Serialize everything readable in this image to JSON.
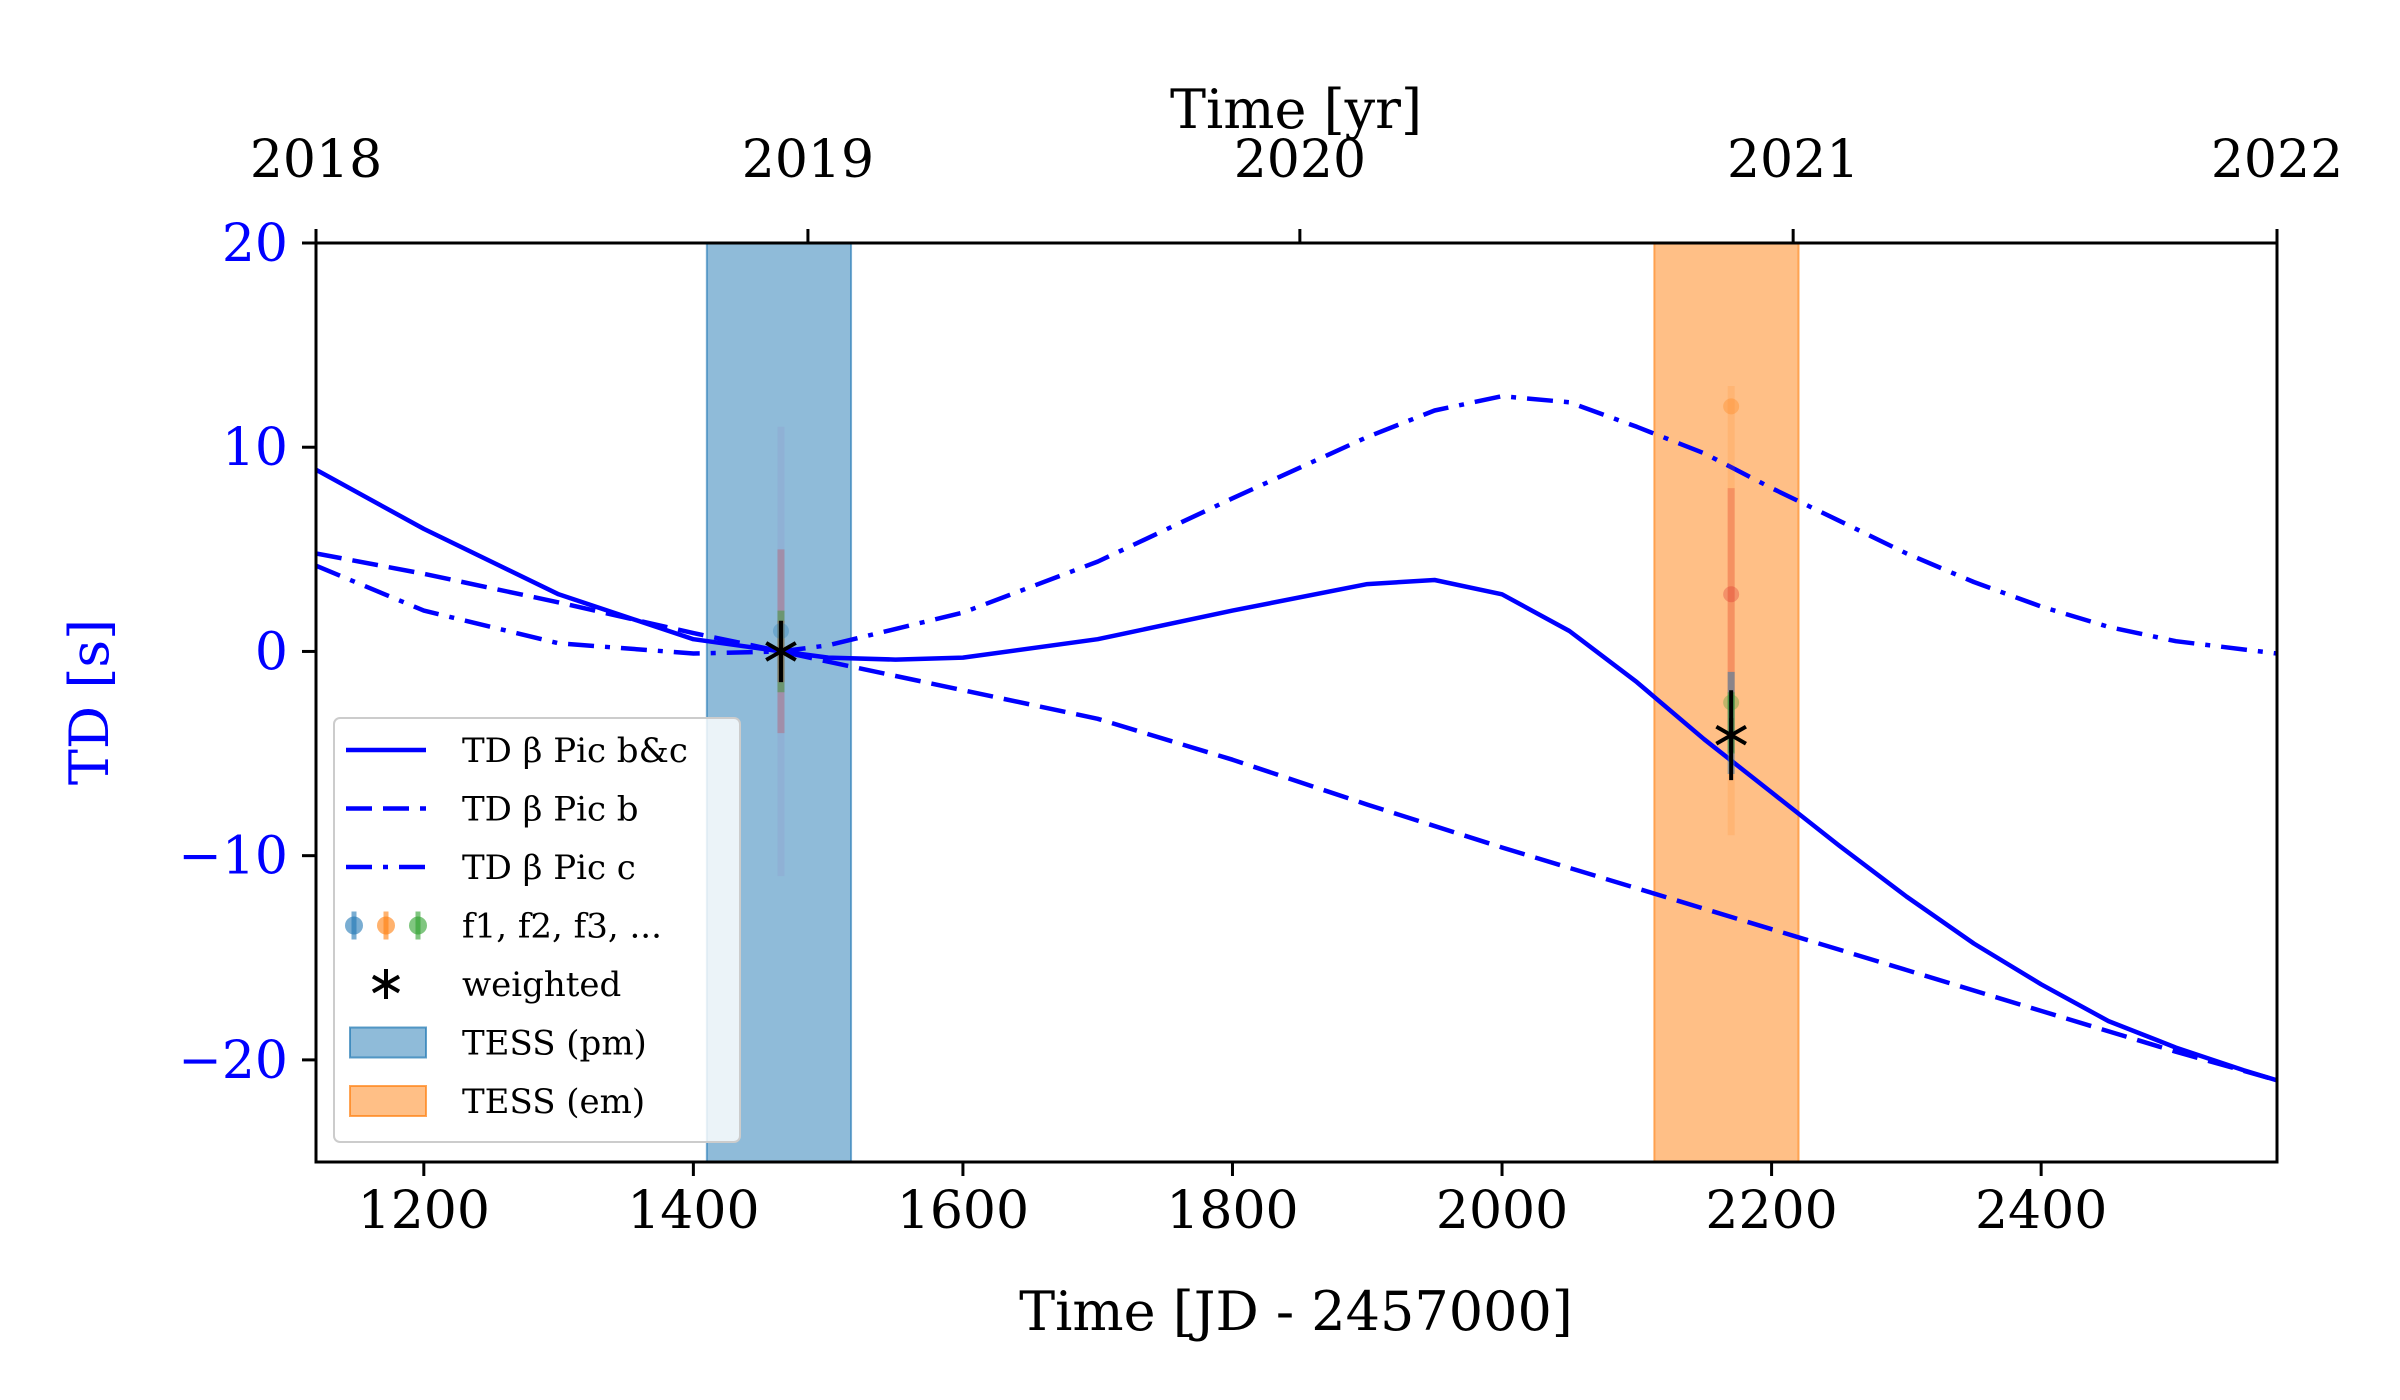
{
  "chart_data": {
    "type": "line",
    "xlabel": "Time [JD - 2457000]",
    "ylabel": "TD [s]",
    "top_xlabel": "Time [yr]",
    "xlim": [
      1120,
      2575
    ],
    "ylim": [
      -25,
      20
    ],
    "xticks": [
      1200,
      1400,
      1600,
      1800,
      2000,
      2200,
      2400
    ],
    "yticks": [
      20,
      10,
      0,
      -10,
      -20
    ],
    "top_axis": {
      "ticks": [
        {
          "label": "2018",
          "x": 1120
        },
        {
          "label": "2019",
          "x": 1485
        },
        {
          "label": "2020",
          "x": 1850
        },
        {
          "label": "2021",
          "x": 2216
        },
        {
          "label": "2022",
          "x": 2575
        }
      ]
    },
    "grid": false,
    "legend_position": "lower-left",
    "colors": {
      "line": "#0000ff",
      "tess_pm": "#1f77b4",
      "tess_em": "#ff7f0e",
      "weighted": "#000000"
    },
    "spans": [
      {
        "name": "TESS (pm)",
        "x0": 1410,
        "x1": 1517,
        "color": "#1f77b4"
      },
      {
        "name": "TESS (em)",
        "x0": 2113,
        "x1": 2220,
        "color": "#ff7f0e"
      }
    ],
    "series": [
      {
        "name": "TD β Pic b&c",
        "style": "solid",
        "x": [
          1120,
          1200,
          1300,
          1400,
          1465,
          1500,
          1550,
          1600,
          1700,
          1800,
          1900,
          1950,
          2000,
          2050,
          2100,
          2150,
          2200,
          2250,
          2300,
          2350,
          2400,
          2450,
          2500,
          2550,
          2575
        ],
        "y": [
          8.9,
          6.0,
          2.8,
          0.6,
          0.0,
          -0.3,
          -0.4,
          -0.3,
          0.6,
          2.0,
          3.3,
          3.5,
          2.8,
          1.0,
          -1.5,
          -4.3,
          -6.9,
          -9.5,
          -12.0,
          -14.3,
          -16.3,
          -18.1,
          -19.4,
          -20.5,
          -21.0
        ]
      },
      {
        "name": "TD β Pic b",
        "style": "dashed",
        "x": [
          1120,
          1200,
          1300,
          1400,
          1465,
          1500,
          1600,
          1700,
          1800,
          1900,
          2000,
          2100,
          2200,
          2300,
          2400,
          2500,
          2575
        ],
        "y": [
          4.8,
          3.8,
          2.4,
          0.9,
          0.0,
          -0.5,
          -1.9,
          -3.3,
          -5.3,
          -7.5,
          -9.6,
          -11.6,
          -13.6,
          -15.6,
          -17.6,
          -19.6,
          -21.0
        ]
      },
      {
        "name": "TD β Pic c",
        "style": "dashdot",
        "x": [
          1120,
          1200,
          1300,
          1400,
          1465,
          1500,
          1600,
          1700,
          1800,
          1900,
          1950,
          2000,
          2050,
          2100,
          2150,
          2200,
          2250,
          2300,
          2350,
          2400,
          2450,
          2500,
          2575
        ],
        "y": [
          4.2,
          2.0,
          0.4,
          -0.1,
          0.0,
          0.3,
          1.9,
          4.4,
          7.5,
          10.5,
          11.8,
          12.5,
          12.2,
          11.0,
          9.7,
          8.0,
          6.4,
          4.8,
          3.4,
          2.2,
          1.2,
          0.5,
          -0.1
        ]
      }
    ],
    "weighted_points": [
      {
        "x": 1465,
        "y": 0.0,
        "err": 1.5
      },
      {
        "x": 2170,
        "y": -4.1,
        "err": 2.2
      }
    ],
    "legend": [
      {
        "label": "TD β Pic b&c",
        "kind": "solid"
      },
      {
        "label": "TD β Pic b",
        "kind": "dashed"
      },
      {
        "label": "TD β Pic c",
        "kind": "dashdot"
      },
      {
        "label": "f1, f2, f3, ...",
        "kind": "errorpoints"
      },
      {
        "label": "weighted",
        "kind": "star"
      },
      {
        "label": "TESS (pm)",
        "kind": "patch-pm"
      },
      {
        "label": "TESS (em)",
        "kind": "patch-em"
      }
    ]
  }
}
